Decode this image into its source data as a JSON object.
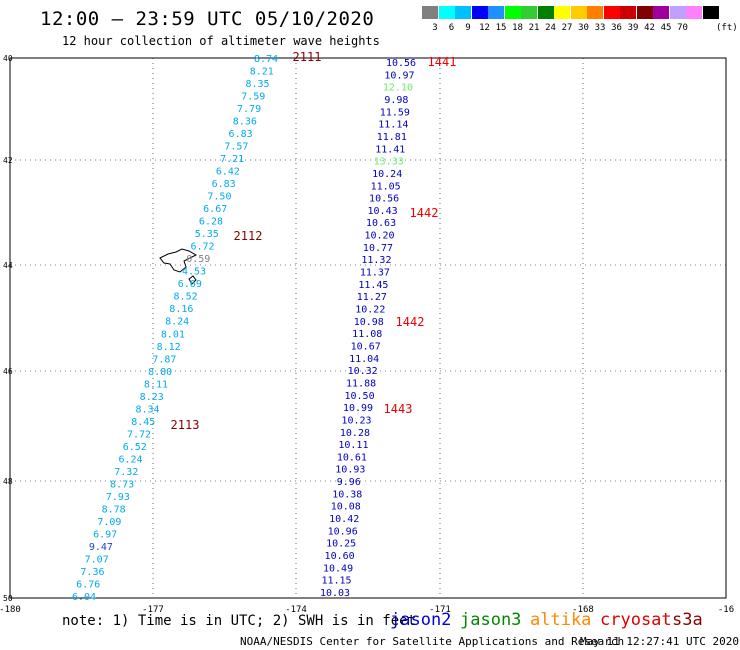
{
  "header": {
    "title": "12:00 – 23:59 UTC 05/10/2020",
    "subtitle": "12 hour collection of altimeter wave heights"
  },
  "scale": {
    "colors": [
      "#808080",
      "#00ffff",
      "#00c0ff",
      "#0000ff",
      "#1e90ff",
      "#00ff00",
      "#33cc33",
      "#008000",
      "#ffff00",
      "#ffcc00",
      "#ff8000",
      "#ff0000",
      "#cc0000",
      "#800000",
      "#a000a0",
      "#c0a0ff",
      "#ff80ff",
      "#000000"
    ],
    "ticks": [
      "3",
      "6",
      "9",
      "12",
      "15",
      "18",
      "21",
      "24",
      "27",
      "30",
      "33",
      "36",
      "39",
      "42",
      "45",
      "70"
    ],
    "unit": "(ft)"
  },
  "axes": {
    "lat_labels": [
      "40",
      "42",
      "44",
      "46",
      "48",
      "50"
    ],
    "lon_labels": [
      "-180",
      "-177",
      "-174",
      "-171",
      "-168",
      "-16"
    ]
  },
  "tracks": [
    {
      "name": "jason3-west",
      "values": [
        "8.74",
        "8.21",
        "8.35",
        "7.59",
        "7.79",
        "8.36",
        "6.83",
        "7.57",
        "7.21",
        "6.42",
        "6.83",
        "7.50",
        "6.67",
        "6.28",
        "5.35",
        "6.72",
        "0.59",
        "4.53",
        "6.69",
        "8.52",
        "8.16",
        "8.24",
        "8.01",
        "8.12",
        "7.87",
        "8.80",
        "8.11",
        "8.23",
        "8.34",
        "8.45",
        "7.72",
        "6.52",
        "6.24",
        "7.32",
        "8.73",
        "7.93",
        "8.78",
        "7.09",
        "6.97",
        "9.47",
        "7.07",
        "7.36",
        "6.76",
        "6.04"
      ],
      "colors": [
        "#00aaee",
        "#00aaee",
        "#00aaee",
        "#00aaee",
        "#00aaee",
        "#00aaee",
        "#00aaee",
        "#00aaee",
        "#00aaee",
        "#00aaee",
        "#00aaee",
        "#00aaee",
        "#00aaee",
        "#00aaee",
        "#00aaee",
        "#00aaee",
        "#808080",
        "#00aaee",
        "#00aaee",
        "#00aaee",
        "#00aaee",
        "#00aaee",
        "#00aaee",
        "#00aaee",
        "#00aaee",
        "#00aaee",
        "#00aaee",
        "#00aaee",
        "#00aaee",
        "#00aaee",
        "#00aaee",
        "#00aaee",
        "#00aaee",
        "#00aaee",
        "#00aaee",
        "#00aaee",
        "#00aaee",
        "#00aaee",
        "#00aaee",
        "#1e3fd0",
        "#00aaee",
        "#00aaee",
        "#00aaee",
        "#00aaee"
      ],
      "times": [
        "2111",
        "2112",
        "2113"
      ],
      "time_color": "#8b0000"
    },
    {
      "name": "jason2-east",
      "values": [
        "10.56",
        "10.97",
        "12.10",
        "9.98",
        "11.59",
        "11.14",
        "11.81",
        "11.41",
        "13.33",
        "10.24",
        "11.05",
        "10.56",
        "10.43",
        "10.63",
        "10.20",
        "10.77",
        "11.32",
        "11.37",
        "11.45",
        "11.27",
        "10.22",
        "10.98",
        "11.08",
        "10.67",
        "11.04",
        "10.32",
        "11.88",
        "10.50",
        "10.99",
        "10.23",
        "10.28",
        "10.11",
        "10.61",
        "10.93",
        "9.96",
        "10.38",
        "10.08",
        "10.42",
        "10.96",
        "10.25",
        "10.60",
        "10.49",
        "11.15",
        "10.03"
      ],
      "colors": [
        "#0000c0",
        "#0000c0",
        "#66ee66",
        "#0000c0",
        "#0000c0",
        "#0000c0",
        "#0000c0",
        "#0000c0",
        "#66ee66",
        "#0000c0",
        "#0000c0",
        "#0000c0",
        "#0000c0",
        "#0000c0",
        "#0000c0",
        "#0000c0",
        "#0000c0",
        "#0000c0",
        "#0000c0",
        "#0000c0",
        "#0000c0",
        "#0000c0",
        "#0000c0",
        "#0000c0",
        "#0000c0",
        "#0000c0",
        "#0000c0",
        "#0000c0",
        "#0000c0",
        "#0000c0",
        "#0000c0",
        "#0000c0",
        "#0000c0",
        "#0000c0",
        "#0000c0",
        "#0000c0",
        "#0000c0",
        "#0000c0",
        "#0000c0",
        "#0000c0",
        "#0000c0",
        "#0000c0",
        "#0000c0",
        "#0000c0"
      ],
      "times": [
        "1441",
        "1442",
        "1442",
        "1443"
      ],
      "time_color": "#ee0000"
    }
  ],
  "footer": {
    "note": "note: 1) Time is in UTC; 2) SWH is in feet",
    "satellites": [
      {
        "name": "jason2",
        "color": "#0000dd"
      },
      {
        "name": "jason3",
        "color": "#008800"
      },
      {
        "name": "altika",
        "color": "#ff8800"
      },
      {
        "name": "cryosat",
        "color": "#dd0000"
      },
      {
        "name": "s3a",
        "color": "#8b0000"
      }
    ],
    "credit": "NOAA/NESDIS Center for Satellite Applications and Research",
    "timestamp": "May 11 12:27:41 UTC 2020"
  }
}
